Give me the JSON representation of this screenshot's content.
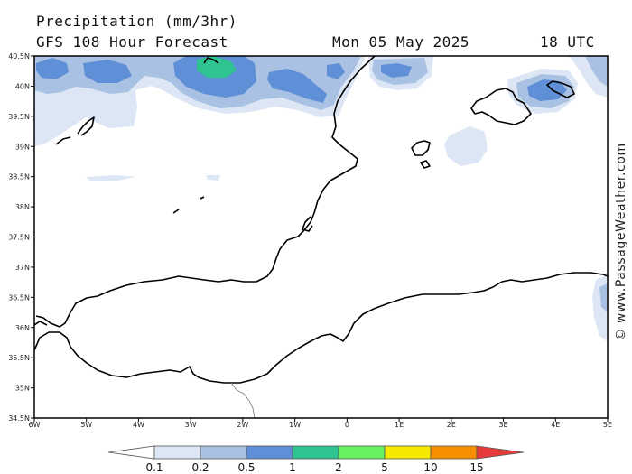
{
  "header": {
    "title": "Precipitation (mm/3hr)",
    "subtitle": "GFS 108 Hour Forecast",
    "datetime": "Mon 05 May 2025",
    "hour": "18 UTC"
  },
  "watermark": "© www.PassageWeather.com",
  "axes": {
    "latitude_labels": [
      "40.5N",
      "40N",
      "39.5N",
      "39N",
      "38.5N",
      "38N",
      "37.5N",
      "37N",
      "36.5N",
      "36N",
      "35.5N",
      "35N",
      "34.5N"
    ],
    "longitude_labels": [
      "6W",
      "5W",
      "4W",
      "3W",
      "2W",
      "1W",
      "0",
      "1E",
      "2E",
      "3E",
      "4E",
      "5E"
    ]
  },
  "colorbar": {
    "colors": [
      "#ffffff",
      "#dde6f4",
      "#a9c2e3",
      "#5f8fd6",
      "#2ec390",
      "#66f260",
      "#f7e800",
      "#f79000",
      "#e73b3b"
    ],
    "labels": [
      "0.1",
      "0.2",
      "0.5",
      "1",
      "2",
      "5",
      "10",
      "15"
    ]
  },
  "precipitation_colors": {
    "light": "#dde6f4",
    "moderate": "#a9c2e3",
    "heavy": "#5f8fd6",
    "very_heavy": "#2ec390"
  }
}
